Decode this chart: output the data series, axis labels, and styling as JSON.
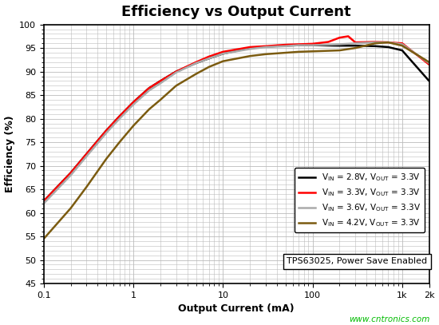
{
  "title": "Efficiency vs Output Current",
  "xlabel": "Output Current (mA)",
  "ylabel": "Efficiency (%)",
  "ylim": [
    45,
    100
  ],
  "xlim": [
    0.1,
    2000
  ],
  "yticks": [
    45,
    50,
    55,
    60,
    65,
    70,
    75,
    80,
    85,
    90,
    95,
    100
  ],
  "xtick_labels": [
    "0.1",
    "1",
    "10",
    "100",
    "1k",
    "2k"
  ],
  "xtick_vals": [
    0.1,
    1,
    10,
    100,
    1000,
    2000
  ],
  "watermark": "www.cntronics.com",
  "annotation": "TPS63025, Power Save Enabled",
  "background_color": "#ffffff",
  "plot_bg_color": "#ffffff",
  "grid_color": "#bbbbbb",
  "curves": {
    "vin28": {
      "color": "#000000",
      "lw": 1.8,
      "x": [
        0.1,
        0.2,
        0.3,
        0.5,
        0.7,
        1.0,
        1.5,
        2.0,
        3.0,
        5.0,
        7.0,
        10,
        20,
        30,
        50,
        70,
        100,
        200,
        300,
        500,
        700,
        1000,
        2000
      ],
      "y": [
        62.5,
        68.5,
        72.5,
        77.5,
        80.5,
        83.5,
        86.5,
        88.0,
        90.0,
        91.8,
        92.8,
        93.8,
        95.0,
        95.3,
        95.5,
        95.6,
        95.6,
        95.5,
        95.5,
        95.4,
        95.2,
        94.5,
        88.0
      ]
    },
    "vin33": {
      "color": "#ff0000",
      "lw": 1.8,
      "x": [
        0.1,
        0.2,
        0.3,
        0.5,
        0.7,
        1.0,
        1.5,
        2.0,
        3.0,
        5.0,
        7.0,
        10,
        20,
        30,
        50,
        70,
        100,
        150,
        200,
        250,
        300,
        500,
        700,
        1000,
        2000
      ],
      "y": [
        62.5,
        68.5,
        72.5,
        77.5,
        80.5,
        83.5,
        86.5,
        88.0,
        90.0,
        92.0,
        93.2,
        94.2,
        95.2,
        95.4,
        95.7,
        95.8,
        95.9,
        96.3,
        97.2,
        97.5,
        96.2,
        96.3,
        96.2,
        96.0,
        91.5
      ]
    },
    "vin36": {
      "color": "#aaaaaa",
      "lw": 1.8,
      "x": [
        0.1,
        0.2,
        0.3,
        0.5,
        0.7,
        1.0,
        1.5,
        2.0,
        3.0,
        5.0,
        7.0,
        10,
        20,
        30,
        50,
        70,
        100,
        200,
        300,
        500,
        700,
        1000,
        2000
      ],
      "y": [
        62.0,
        68.0,
        72.0,
        77.0,
        80.0,
        83.0,
        86.0,
        87.5,
        89.8,
        91.8,
        92.8,
        93.8,
        94.8,
        95.2,
        95.4,
        95.6,
        95.6,
        95.8,
        96.0,
        96.2,
        96.2,
        95.8,
        91.8
      ]
    },
    "vin42": {
      "color": "#7B5B10",
      "lw": 1.8,
      "x": [
        0.1,
        0.2,
        0.3,
        0.5,
        0.7,
        1.0,
        1.5,
        2.0,
        3.0,
        5.0,
        7.0,
        10,
        20,
        30,
        50,
        70,
        100,
        200,
        300,
        500,
        700,
        1000,
        2000
      ],
      "y": [
        54.5,
        61.0,
        65.5,
        71.5,
        75.0,
        78.5,
        82.0,
        84.0,
        87.0,
        89.5,
        91.0,
        92.2,
        93.3,
        93.7,
        94.0,
        94.2,
        94.3,
        94.5,
        95.0,
        96.0,
        96.2,
        95.5,
        92.0
      ]
    }
  }
}
